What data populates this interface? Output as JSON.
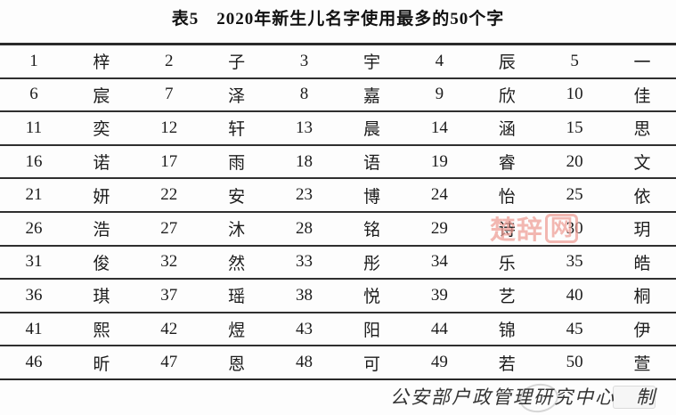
{
  "title": "表5　2020年新生儿名字使用最多的50个字",
  "table": {
    "description": "50 most used characters in 2020 newborn names, rank/character pairs",
    "rows": [
      [
        "1",
        "梓",
        "2",
        "子",
        "3",
        "宇",
        "4",
        "辰",
        "5",
        "一"
      ],
      [
        "6",
        "宸",
        "7",
        "泽",
        "8",
        "嘉",
        "9",
        "欣",
        "10",
        "佳"
      ],
      [
        "11",
        "奕",
        "12",
        "轩",
        "13",
        "晨",
        "14",
        "涵",
        "15",
        "思"
      ],
      [
        "16",
        "诺",
        "17",
        "雨",
        "18",
        "语",
        "19",
        "睿",
        "20",
        "文"
      ],
      [
        "21",
        "妍",
        "22",
        "安",
        "23",
        "博",
        "24",
        "怡",
        "25",
        "依"
      ],
      [
        "26",
        "浩",
        "27",
        "沐",
        "28",
        "铭",
        "29",
        "诗",
        "30",
        "玥"
      ],
      [
        "31",
        "俊",
        "32",
        "然",
        "33",
        "彤",
        "34",
        "乐",
        "35",
        "皓"
      ],
      [
        "36",
        "琪",
        "37",
        "瑶",
        "38",
        "悦",
        "39",
        "艺",
        "40",
        "桐"
      ],
      [
        "41",
        "熙",
        "42",
        "煜",
        "43",
        "阳",
        "44",
        "锦",
        "45",
        "伊"
      ],
      [
        "46",
        "昕",
        "47",
        "恩",
        "48",
        "可",
        "49",
        "若",
        "50",
        "萱"
      ]
    ]
  },
  "footer": {
    "credit": "公安部户政管理研究中心　制"
  },
  "watermark": {
    "text": "楚辞",
    "boxed": "网",
    "color": "#ee9d94"
  },
  "colors": {
    "line": "#2a2a2a",
    "text": "#1c1c1c",
    "background": "#fdfdfd"
  }
}
